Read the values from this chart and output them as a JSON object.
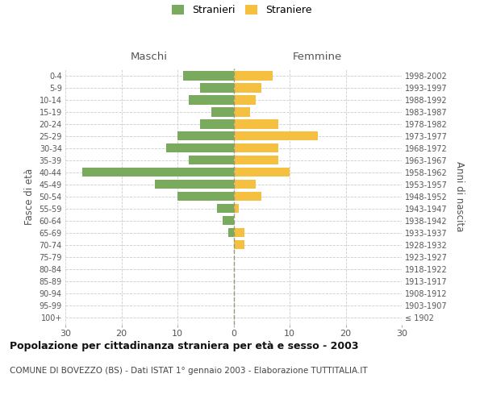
{
  "age_groups": [
    "100+",
    "95-99",
    "90-94",
    "85-89",
    "80-84",
    "75-79",
    "70-74",
    "65-69",
    "60-64",
    "55-59",
    "50-54",
    "45-49",
    "40-44",
    "35-39",
    "30-34",
    "25-29",
    "20-24",
    "15-19",
    "10-14",
    "5-9",
    "0-4"
  ],
  "birth_years": [
    "≤ 1902",
    "1903-1907",
    "1908-1912",
    "1913-1917",
    "1918-1922",
    "1923-1927",
    "1928-1932",
    "1933-1937",
    "1938-1942",
    "1943-1947",
    "1948-1952",
    "1953-1957",
    "1958-1962",
    "1963-1967",
    "1968-1972",
    "1973-1977",
    "1978-1982",
    "1983-1987",
    "1988-1992",
    "1993-1997",
    "1998-2002"
  ],
  "males": [
    0,
    0,
    0,
    0,
    0,
    0,
    0,
    1,
    2,
    3,
    10,
    14,
    27,
    8,
    12,
    10,
    6,
    4,
    8,
    6,
    9
  ],
  "females": [
    0,
    0,
    0,
    0,
    0,
    0,
    2,
    2,
    0,
    1,
    5,
    4,
    10,
    8,
    8,
    15,
    8,
    3,
    4,
    5,
    7
  ],
  "male_color": "#7aaa5d",
  "female_color": "#f5c040",
  "grid_color": "#cccccc",
  "dashed_line_color": "#999977",
  "title": "Popolazione per cittadinanza straniera per età e sesso - 2003",
  "subtitle": "COMUNE DI BOVEZZO (BS) - Dati ISTAT 1° gennaio 2003 - Elaborazione TUTTITALIA.IT",
  "ylabel_left": "Fasce di età",
  "ylabel_right": "Anni di nascita",
  "header_maschi": "Maschi",
  "header_femmine": "Femmine",
  "legend_stranieri": "Stranieri",
  "legend_straniere": "Straniere",
  "xlim": 30,
  "background_color": "#ffffff"
}
